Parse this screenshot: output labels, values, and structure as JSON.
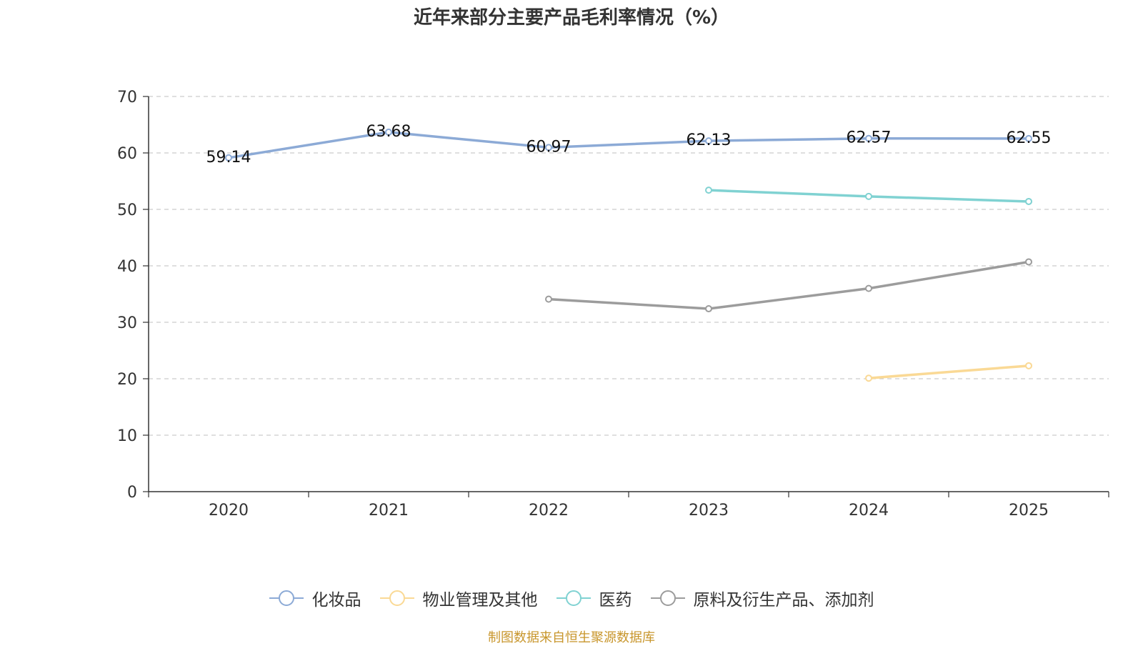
{
  "chart_data": {
    "type": "line",
    "title": "近年来部分主要产品毛利率情况（%）",
    "categories": [
      "2020",
      "2021",
      "2022",
      "2023",
      "2024",
      "2025"
    ],
    "ylim": [
      0,
      70
    ],
    "yticks": [
      "0",
      "10",
      "20",
      "30",
      "40",
      "50",
      "60",
      "70"
    ],
    "grid": true,
    "legend_position": "bottom",
    "series": [
      {
        "name": "化妆品",
        "color": "#8caad6",
        "values": [
          59.14,
          63.68,
          60.97,
          62.13,
          62.57,
          62.55
        ],
        "labels": [
          "59.14",
          "63.68",
          "60.97",
          "62.13",
          "62.57",
          "62.55"
        ]
      },
      {
        "name": "物业管理及其他",
        "color": "#fad995",
        "values": [
          null,
          null,
          null,
          null,
          20.1,
          22.3
        ],
        "labels": []
      },
      {
        "name": "医药",
        "color": "#80d2d2",
        "values": [
          null,
          null,
          null,
          53.4,
          52.3,
          51.4
        ],
        "labels": []
      },
      {
        "name": "原料及衍生产品、添加剂",
        "color": "#9c9c9c",
        "values": [
          null,
          null,
          34.1,
          32.4,
          36.0,
          40.7
        ],
        "labels": []
      }
    ]
  },
  "source": "制图数据来自恒生聚源数据库"
}
